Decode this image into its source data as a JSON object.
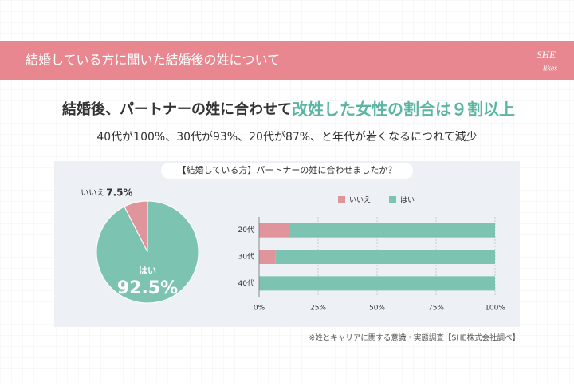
{
  "header": {
    "title": "結婚している方に聞いた結婚後の姓について",
    "logo_top": "SHE",
    "logo_bottom": "likes"
  },
  "headline": {
    "lead": "結婚後、パートナーの姓に合わせて",
    "emphasis": "改姓した女性の割合は９割以上"
  },
  "subline": "40代が100%、30代が93%、20代が87%、と年代が若くなるにつれて減少",
  "panel_title": "【結婚している方】パートナーの姓に合わせましたか？",
  "source": "※姓とキャリアに関する意識・実態調査【SHE株式会社調べ】",
  "chart_data": [
    {
      "type": "pie",
      "categories": [
        "いいえ",
        "はい"
      ],
      "values": [
        7.5,
        92.5
      ],
      "value_labels": [
        "7.5%",
        "92.5%"
      ],
      "colors": [
        "#e0959c",
        "#7cc3b2"
      ]
    },
    {
      "type": "stacked-bar-horizontal",
      "categories": [
        "20代",
        "30代",
        "40代"
      ],
      "series": [
        {
          "name": "いいえ",
          "color": "#e0959c",
          "values": [
            13,
            7,
            0
          ]
        },
        {
          "name": "はい",
          "color": "#7cc3b2",
          "values": [
            87,
            93,
            100
          ]
        }
      ],
      "xlim": [
        0,
        100
      ],
      "xticks": [
        {
          "value": 0,
          "label": "0%"
        },
        {
          "value": 25,
          "label": "25%"
        },
        {
          "value": 50,
          "label": "50%"
        },
        {
          "value": 75,
          "label": "75%"
        },
        {
          "value": 100,
          "label": "100%"
        }
      ],
      "grid": true
    }
  ]
}
